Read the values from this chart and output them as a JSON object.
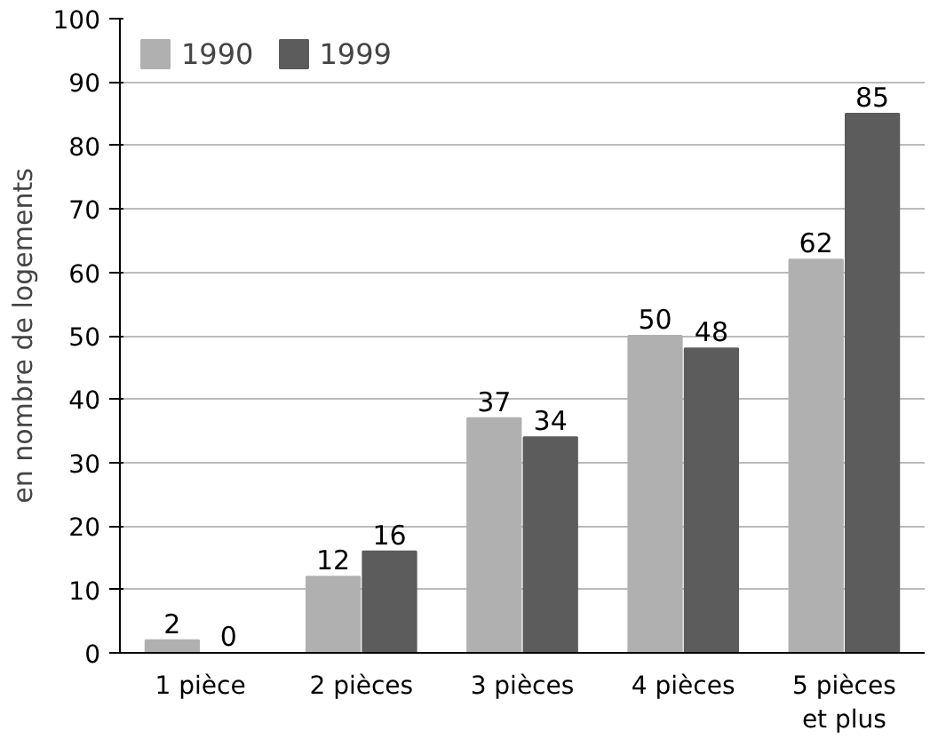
{
  "chart_data": {
    "type": "bar",
    "ylabel": "en nombre de logements",
    "categories": [
      "1 pièce",
      "2 pièces",
      "3 pièces",
      "4 pièces",
      "5 pièces et plus"
    ],
    "series": [
      {
        "name": "1990",
        "color": "#b0b0b0",
        "values": [
          2,
          12,
          37,
          50,
          62
        ]
      },
      {
        "name": "1999",
        "color": "#5c5c5c",
        "values": [
          0,
          16,
          34,
          48,
          85
        ]
      }
    ],
    "ylim": [
      0,
      100
    ],
    "yticks": [
      0,
      10,
      20,
      30,
      40,
      50,
      60,
      70,
      80,
      90,
      100
    ],
    "grid": "y",
    "legend": "top left",
    "data_labels": true
  }
}
